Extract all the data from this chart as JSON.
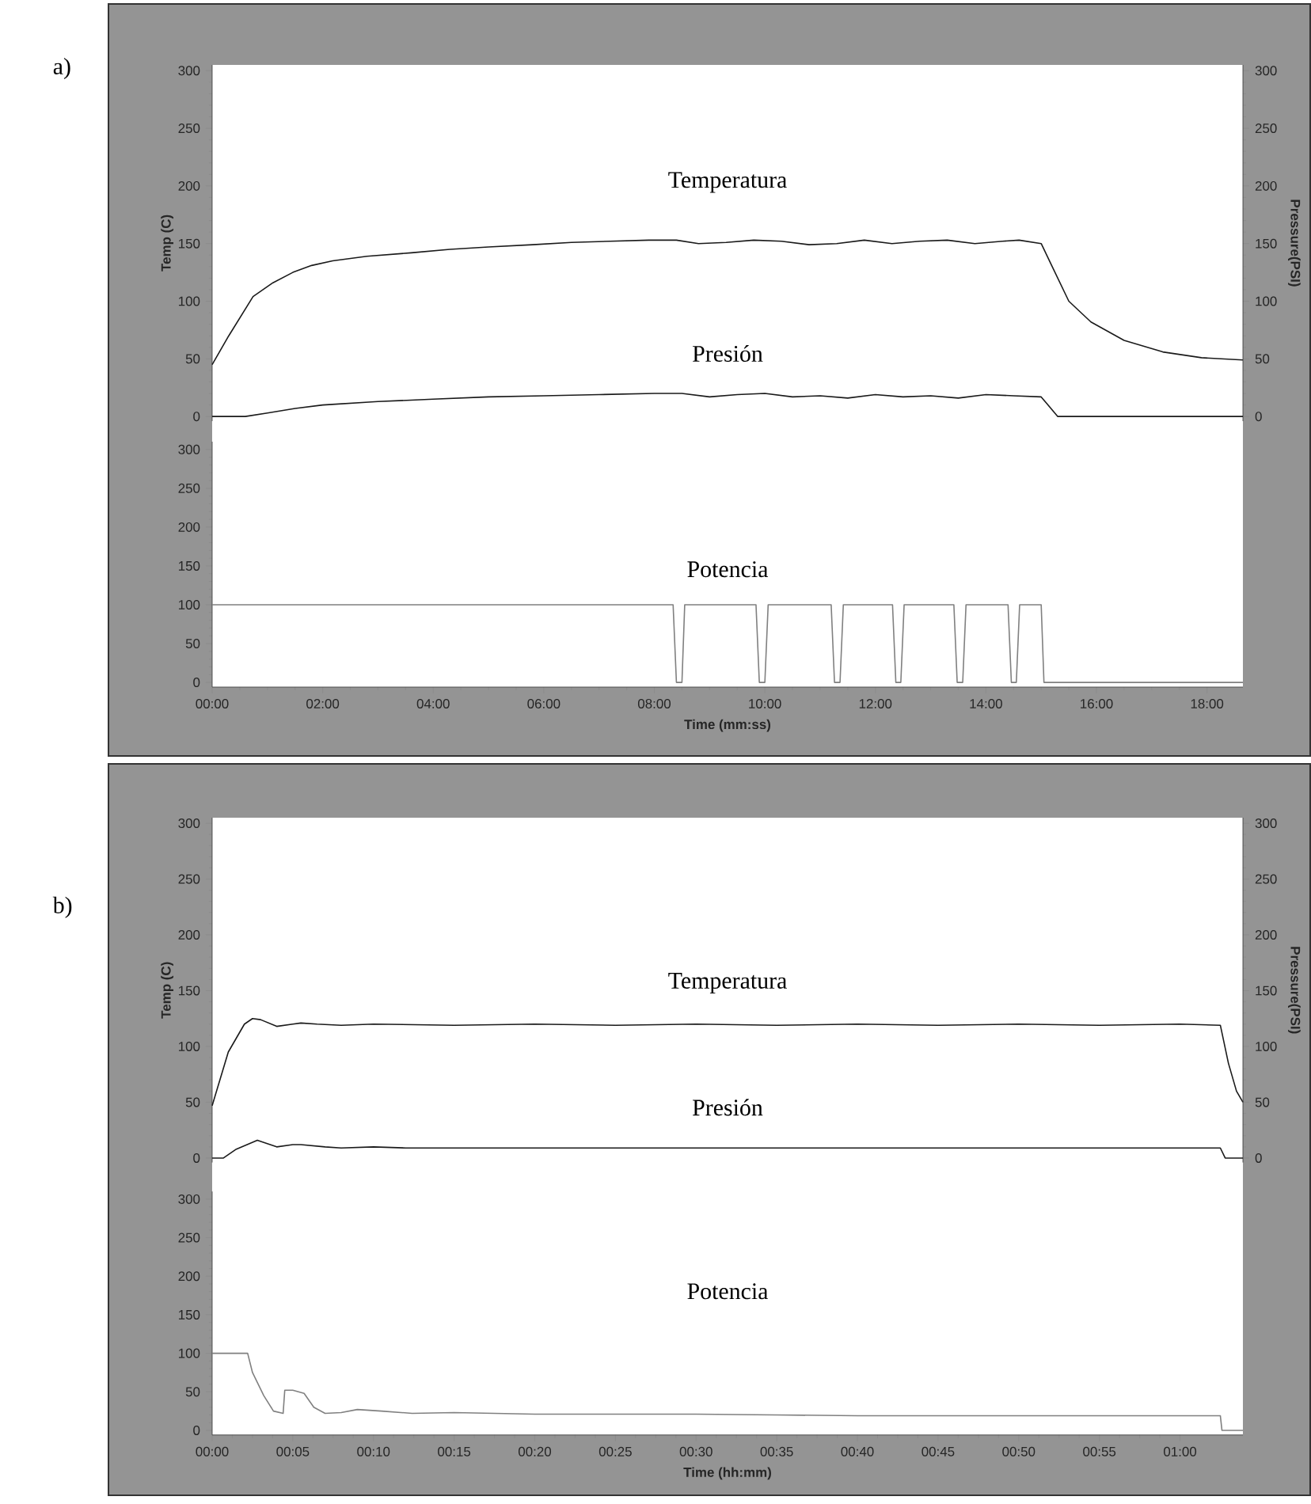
{
  "chart_data": [
    {
      "type": "line",
      "annotations": [
        "a)"
      ],
      "ylabel": "Temp (C)",
      "y2label": "Pressure(PSI)",
      "xlim": [
        0,
        18.65
      ],
      "ylim": [
        -4,
        305
      ],
      "yticks": [
        0,
        50,
        100,
        150,
        200,
        250,
        300
      ],
      "y2lim": [
        -4,
        305
      ],
      "y2ticks": [
        0,
        50,
        100,
        150,
        200,
        250,
        300
      ],
      "tick_labels": "y",
      "series": [
        {
          "name": "Temperatura",
          "color": "#1a1a1a",
          "x": [
            0,
            0.3,
            0.74,
            1.1,
            1.46,
            1.8,
            2.18,
            2.8,
            3.6,
            4.3,
            5.0,
            5.8,
            6.5,
            7.2,
            7.9,
            8.4,
            8.8,
            9.3,
            9.8,
            10.3,
            10.8,
            11.3,
            11.8,
            12.3,
            12.8,
            13.3,
            13.8,
            14.3,
            14.6,
            15.0,
            15.2,
            15.5,
            15.9,
            16.5,
            17.2,
            17.9,
            18.65
          ],
          "values": [
            45,
            70,
            104,
            116,
            125,
            131,
            135,
            139,
            142,
            145,
            147,
            149,
            151,
            152,
            153,
            153,
            150,
            151,
            153,
            152,
            149,
            150,
            153,
            150,
            152,
            153,
            150,
            152,
            153,
            150,
            130,
            100,
            82,
            66,
            56,
            51,
            49
          ]
        },
        {
          "name": "Presión",
          "color": "#1a1a1a",
          "axis": "y2",
          "x": [
            0,
            0.6,
            1.0,
            1.5,
            2.0,
            3.0,
            4.0,
            5.0,
            6.0,
            7.0,
            8.0,
            8.5,
            9.0,
            9.5,
            10.0,
            10.5,
            11.0,
            11.5,
            12.0,
            12.5,
            13.0,
            13.5,
            14.0,
            14.5,
            15.0,
            15.3,
            16.0,
            18.65
          ],
          "values": [
            0,
            0,
            3,
            7,
            10,
            13,
            15,
            17,
            18,
            19,
            20,
            20,
            17,
            19,
            20,
            17,
            18,
            16,
            19,
            17,
            18,
            16,
            19,
            18,
            17,
            0,
            0,
            0
          ]
        }
      ]
    },
    {
      "type": "line",
      "xlabel": "Time (mm:ss)",
      "xlim": [
        0,
        18.65
      ],
      "ylim": [
        -6,
        310
      ],
      "yticks": [
        0,
        50,
        100,
        150,
        200,
        250,
        300
      ],
      "xticks": [
        {
          "value": 0,
          "label": "00:00"
        },
        {
          "value": 2,
          "label": "02:00"
        },
        {
          "value": 4,
          "label": "04:00"
        },
        {
          "value": 6,
          "label": "06:00"
        },
        {
          "value": 8,
          "label": "08:00"
        },
        {
          "value": 10,
          "label": "10:00"
        },
        {
          "value": 12,
          "label": "12:00"
        },
        {
          "value": 14,
          "label": "14:00"
        },
        {
          "value": 16,
          "label": "16:00"
        },
        {
          "value": 18,
          "label": "18:00"
        }
      ],
      "series": [
        {
          "name": "Potencia",
          "color": "#808080",
          "x": [
            0,
            8.34,
            8.4,
            8.5,
            8.55,
            9.84,
            9.9,
            10.0,
            10.06,
            11.2,
            11.26,
            11.36,
            11.42,
            12.31,
            12.37,
            12.46,
            12.52,
            13.42,
            13.48,
            13.58,
            13.64,
            14.4,
            14.46,
            14.55,
            14.61,
            15.0,
            15.05,
            18.65
          ],
          "values": [
            100,
            100,
            0,
            0,
            100,
            100,
            0,
            0,
            100,
            100,
            0,
            0,
            100,
            100,
            0,
            0,
            100,
            100,
            0,
            0,
            100,
            100,
            0,
            0,
            100,
            100,
            0,
            0
          ]
        }
      ]
    },
    {
      "type": "line",
      "annotations": [
        "b)"
      ],
      "ylabel": "Temp (C)",
      "y2label": "Pressure(PSI)",
      "xlim": [
        0,
        63.9
      ],
      "ylim": [
        -4,
        305
      ],
      "yticks": [
        0,
        50,
        100,
        150,
        200,
        250,
        300
      ],
      "y2lim": [
        -4,
        305
      ],
      "y2ticks": [
        0,
        50,
        100,
        150,
        200,
        250,
        300
      ],
      "tick_labels": "y",
      "series": [
        {
          "name": "Temperatura",
          "color": "#1a1a1a",
          "x": [
            0,
            1,
            2,
            2.5,
            3,
            4,
            5,
            5.5,
            6.5,
            8,
            10,
            15,
            20,
            25,
            30,
            35,
            40,
            45,
            50,
            55,
            60,
            62.5,
            63,
            63.5,
            63.9
          ],
          "values": [
            47,
            95,
            120,
            125,
            124,
            118,
            120,
            121,
            120,
            119,
            120,
            119,
            120,
            119,
            120,
            119,
            120,
            119,
            120,
            119,
            120,
            119,
            85,
            60,
            50
          ]
        },
        {
          "name": "Presión",
          "color": "#1a1a1a",
          "axis": "y2",
          "x": [
            0,
            0.7,
            1.5,
            2.8,
            4,
            5,
            5.5,
            7,
            8,
            10,
            12,
            20,
            40,
            62.5,
            62.8,
            63.9
          ],
          "values": [
            0,
            0,
            8,
            16,
            10,
            12,
            12,
            10,
            9,
            10,
            9,
            9,
            9,
            9,
            0,
            0
          ]
        }
      ]
    },
    {
      "type": "line",
      "xlabel": "Time (hh:mm)",
      "xlim": [
        0,
        63.9
      ],
      "ylim": [
        -6,
        310
      ],
      "yticks": [
        0,
        50,
        100,
        150,
        200,
        250,
        300
      ],
      "xticks": [
        {
          "value": 0,
          "label": "00:00"
        },
        {
          "value": 5,
          "label": "00:05"
        },
        {
          "value": 10,
          "label": "00:10"
        },
        {
          "value": 15,
          "label": "00:15"
        },
        {
          "value": 20,
          "label": "00:20"
        },
        {
          "value": 25,
          "label": "00:25"
        },
        {
          "value": 30,
          "label": "00:30"
        },
        {
          "value": 35,
          "label": "00:35"
        },
        {
          "value": 40,
          "label": "00:40"
        },
        {
          "value": 45,
          "label": "00:45"
        },
        {
          "value": 50,
          "label": "00:50"
        },
        {
          "value": 55,
          "label": "00:55"
        },
        {
          "value": 60,
          "label": "01:00"
        }
      ],
      "series": [
        {
          "name": "Potencia",
          "color": "#808080",
          "x": [
            0,
            2.2,
            2.5,
            3.2,
            3.8,
            4.4,
            4.5,
            5.0,
            5.7,
            6.3,
            7.0,
            8.0,
            9.0,
            10.5,
            12.4,
            15,
            20,
            25,
            30,
            35,
            40,
            50,
            55,
            62.5,
            62.6,
            63.9
          ],
          "values": [
            100,
            100,
            75,
            45,
            25,
            22,
            52,
            52,
            48,
            30,
            22,
            23,
            27,
            25,
            22,
            23,
            21,
            21,
            21,
            20,
            19,
            19,
            19,
            19,
            0,
            0
          ]
        }
      ]
    }
  ]
}
